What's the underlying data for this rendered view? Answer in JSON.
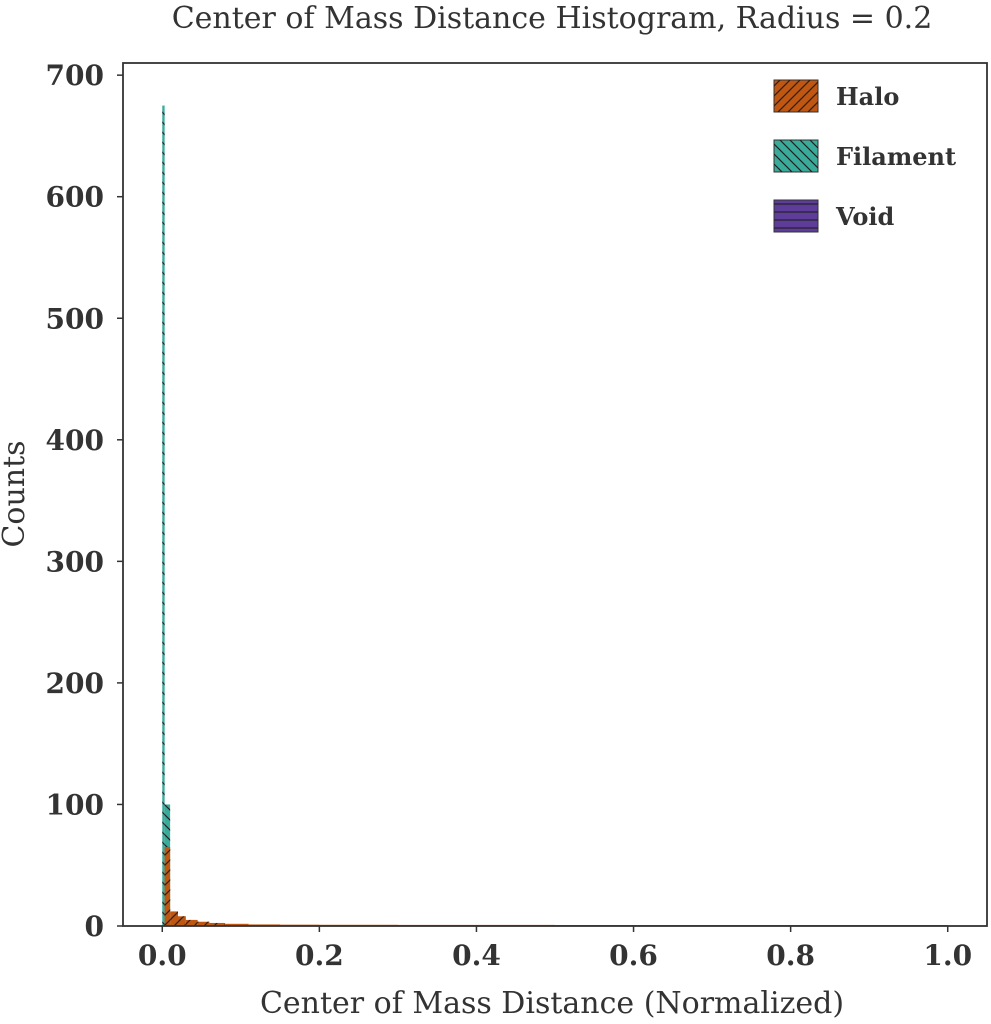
{
  "chart_data": {
    "type": "bar",
    "title": "Center of Mass Distance Histogram, Radius = 0.2",
    "xlabel": "Center of Mass Distance (Normalized)",
    "ylabel": "Counts",
    "xlim": [
      -0.05,
      1.05
    ],
    "ylim": [
      0,
      710
    ],
    "x_ticks": [
      0.0,
      0.2,
      0.4,
      0.6,
      0.8,
      1.0
    ],
    "x_tick_labels": [
      "0.0",
      "0.2",
      "0.4",
      "0.6",
      "0.8",
      "1.0"
    ],
    "y_ticks": [
      0,
      100,
      200,
      300,
      400,
      500,
      600,
      700
    ],
    "y_tick_labels": [
      "0",
      "100",
      "200",
      "300",
      "400",
      "500",
      "600",
      "700"
    ],
    "grid": false,
    "legend_position": "top-right",
    "series": [
      {
        "name": "Filament",
        "color": "#3aaa9a",
        "hatch": "backslash",
        "bins": [
          {
            "x0": 0.0,
            "x1": 0.003,
            "value": 675
          },
          {
            "x0": 0.003,
            "x1": 0.01,
            "value": 100
          }
        ]
      },
      {
        "name": "Halo",
        "color": "#c0560f",
        "hatch": "slash",
        "bins": [
          {
            "x0": 0.003,
            "x1": 0.01,
            "value": 65
          },
          {
            "x0": 0.01,
            "x1": 0.02,
            "value": 12
          },
          {
            "x0": 0.02,
            "x1": 0.03,
            "value": 8
          },
          {
            "x0": 0.03,
            "x1": 0.045,
            "value": 5
          },
          {
            "x0": 0.045,
            "x1": 0.06,
            "value": 3.5
          },
          {
            "x0": 0.06,
            "x1": 0.08,
            "value": 2.5
          },
          {
            "x0": 0.08,
            "x1": 0.11,
            "value": 1.8
          },
          {
            "x0": 0.11,
            "x1": 0.15,
            "value": 1.3
          },
          {
            "x0": 0.15,
            "x1": 0.2,
            "value": 1.1
          },
          {
            "x0": 0.2,
            "x1": 0.3,
            "value": 1.0
          },
          {
            "x0": 0.3,
            "x1": 0.4,
            "value": 0.9
          },
          {
            "x0": 0.4,
            "x1": 0.5,
            "value": 0.9
          },
          {
            "x0": 0.5,
            "x1": 0.6,
            "value": 0.8
          },
          {
            "x0": 0.6,
            "x1": 0.7,
            "value": 0.8
          },
          {
            "x0": 0.7,
            "x1": 0.8,
            "value": 0.8
          },
          {
            "x0": 0.8,
            "x1": 0.9,
            "value": 0.8
          },
          {
            "x0": 0.9,
            "x1": 1.0,
            "value": 0.8
          }
        ]
      },
      {
        "name": "Void",
        "color": "#5e3c99",
        "hatch": "horizontal",
        "bins": []
      }
    ],
    "legend": [
      {
        "label": "Halo",
        "color": "#c0560f",
        "hatch": "slash"
      },
      {
        "label": "Filament",
        "color": "#3aaa9a",
        "hatch": "backslash"
      },
      {
        "label": "Void",
        "color": "#5e3c99",
        "hatch": "horizontal"
      }
    ]
  }
}
